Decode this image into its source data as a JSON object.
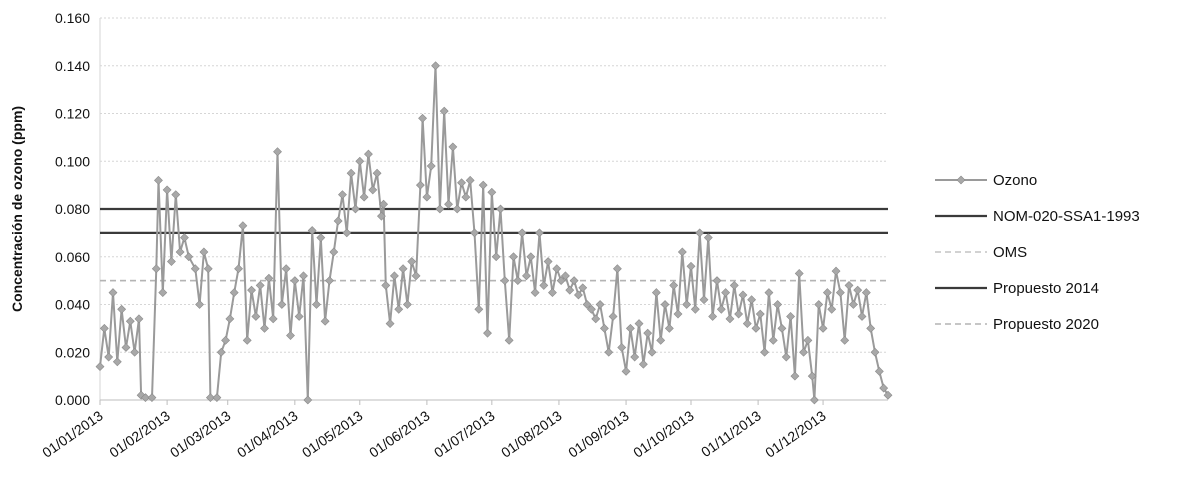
{
  "chart_data": {
    "type": "line",
    "title": "",
    "xlabel": "",
    "ylabel": "Concentración de ozono (ppm)",
    "ylim": [
      0,
      0.16
    ],
    "yticks": [
      "0.000",
      "0.020",
      "0.040",
      "0.060",
      "0.080",
      "0.100",
      "0.120",
      "0.140",
      "0.160"
    ],
    "xlim": [
      "2013-01-01",
      "2013-12-31"
    ],
    "xticks": [
      {
        "date": "2013-01-01",
        "label": "01/01/2013"
      },
      {
        "date": "2013-02-01",
        "label": "01/02/2013"
      },
      {
        "date": "2013-03-01",
        "label": "01/03/2013"
      },
      {
        "date": "2013-04-01",
        "label": "01/04/2013"
      },
      {
        "date": "2013-05-01",
        "label": "01/05/2013"
      },
      {
        "date": "2013-06-01",
        "label": "01/06/2013"
      },
      {
        "date": "2013-07-01",
        "label": "01/07/2013"
      },
      {
        "date": "2013-08-01",
        "label": "01/08/2013"
      },
      {
        "date": "2013-09-01",
        "label": "01/09/2013"
      },
      {
        "date": "2013-10-01",
        "label": "01/10/2013"
      },
      {
        "date": "2013-11-01",
        "label": "01/11/2013"
      },
      {
        "date": "2013-12-01",
        "label": "01/12/2013"
      }
    ],
    "grid": true,
    "legend_position": "right",
    "series": [
      {
        "name": "Ozono",
        "color": "#9a9a9a",
        "marker": "diamond",
        "points": [
          [
            "2013-01-01",
            0.014
          ],
          [
            "2013-01-03",
            0.03
          ],
          [
            "2013-01-05",
            0.018
          ],
          [
            "2013-01-07",
            0.045
          ],
          [
            "2013-01-09",
            0.016
          ],
          [
            "2013-01-11",
            0.038
          ],
          [
            "2013-01-13",
            0.022
          ],
          [
            "2013-01-15",
            0.033
          ],
          [
            "2013-01-17",
            0.02
          ],
          [
            "2013-01-19",
            0.034
          ],
          [
            "2013-01-20",
            0.002
          ],
          [
            "2013-01-22",
            0.001
          ],
          [
            "2013-01-25",
            0.001
          ],
          [
            "2013-01-27",
            0.055
          ],
          [
            "2013-01-28",
            0.092
          ],
          [
            "2013-01-30",
            0.045
          ],
          [
            "2013-02-01",
            0.088
          ],
          [
            "2013-02-03",
            0.058
          ],
          [
            "2013-02-05",
            0.086
          ],
          [
            "2013-02-07",
            0.062
          ],
          [
            "2013-02-09",
            0.068
          ],
          [
            "2013-02-11",
            0.06
          ],
          [
            "2013-02-14",
            0.055
          ],
          [
            "2013-02-16",
            0.04
          ],
          [
            "2013-02-18",
            0.062
          ],
          [
            "2013-02-20",
            0.055
          ],
          [
            "2013-02-21",
            0.001
          ],
          [
            "2013-02-24",
            0.001
          ],
          [
            "2013-02-26",
            0.02
          ],
          [
            "2013-02-28",
            0.025
          ],
          [
            "2013-03-02",
            0.034
          ],
          [
            "2013-03-04",
            0.045
          ],
          [
            "2013-03-06",
            0.055
          ],
          [
            "2013-03-08",
            0.073
          ],
          [
            "2013-03-10",
            0.025
          ],
          [
            "2013-03-12",
            0.046
          ],
          [
            "2013-03-14",
            0.035
          ],
          [
            "2013-03-16",
            0.048
          ],
          [
            "2013-03-18",
            0.03
          ],
          [
            "2013-03-20",
            0.051
          ],
          [
            "2013-03-22",
            0.034
          ],
          [
            "2013-03-24",
            0.104
          ],
          [
            "2013-03-26",
            0.04
          ],
          [
            "2013-03-28",
            0.055
          ],
          [
            "2013-03-30",
            0.027
          ],
          [
            "2013-04-01",
            0.05
          ],
          [
            "2013-04-03",
            0.035
          ],
          [
            "2013-04-05",
            0.052
          ],
          [
            "2013-04-07",
            0.0
          ],
          [
            "2013-04-09",
            0.071
          ],
          [
            "2013-04-11",
            0.04
          ],
          [
            "2013-04-13",
            0.068
          ],
          [
            "2013-04-15",
            0.033
          ],
          [
            "2013-04-17",
            0.05
          ],
          [
            "2013-04-19",
            0.062
          ],
          [
            "2013-04-21",
            0.075
          ],
          [
            "2013-04-23",
            0.086
          ],
          [
            "2013-04-25",
            0.07
          ],
          [
            "2013-04-27",
            0.095
          ],
          [
            "2013-04-29",
            0.08
          ],
          [
            "2013-05-01",
            0.1
          ],
          [
            "2013-05-03",
            0.085
          ],
          [
            "2013-05-05",
            0.103
          ],
          [
            "2013-05-07",
            0.088
          ],
          [
            "2013-05-09",
            0.095
          ],
          [
            "2013-05-11",
            0.077
          ],
          [
            "2013-05-12",
            0.082
          ],
          [
            "2013-05-13",
            0.048
          ],
          [
            "2013-05-15",
            0.032
          ],
          [
            "2013-05-17",
            0.052
          ],
          [
            "2013-05-19",
            0.038
          ],
          [
            "2013-05-21",
            0.055
          ],
          [
            "2013-05-23",
            0.04
          ],
          [
            "2013-05-25",
            0.058
          ],
          [
            "2013-05-27",
            0.052
          ],
          [
            "2013-05-29",
            0.09
          ],
          [
            "2013-05-30",
            0.118
          ],
          [
            "2013-06-01",
            0.085
          ],
          [
            "2013-06-03",
            0.098
          ],
          [
            "2013-06-05",
            0.14
          ],
          [
            "2013-06-07",
            0.08
          ],
          [
            "2013-06-09",
            0.121
          ],
          [
            "2013-06-11",
            0.082
          ],
          [
            "2013-06-13",
            0.106
          ],
          [
            "2013-06-15",
            0.08
          ],
          [
            "2013-06-17",
            0.091
          ],
          [
            "2013-06-19",
            0.085
          ],
          [
            "2013-06-21",
            0.092
          ],
          [
            "2013-06-23",
            0.07
          ],
          [
            "2013-06-25",
            0.038
          ],
          [
            "2013-06-27",
            0.09
          ],
          [
            "2013-06-29",
            0.028
          ],
          [
            "2013-07-01",
            0.087
          ],
          [
            "2013-07-03",
            0.06
          ],
          [
            "2013-07-05",
            0.08
          ],
          [
            "2013-07-07",
            0.05
          ],
          [
            "2013-07-09",
            0.025
          ],
          [
            "2013-07-11",
            0.06
          ],
          [
            "2013-07-13",
            0.05
          ],
          [
            "2013-07-15",
            0.07
          ],
          [
            "2013-07-17",
            0.052
          ],
          [
            "2013-07-19",
            0.06
          ],
          [
            "2013-07-21",
            0.045
          ],
          [
            "2013-07-23",
            0.07
          ],
          [
            "2013-07-25",
            0.048
          ],
          [
            "2013-07-27",
            0.058
          ],
          [
            "2013-07-29",
            0.045
          ],
          [
            "2013-07-31",
            0.055
          ],
          [
            "2013-08-02",
            0.05
          ],
          [
            "2013-08-04",
            0.052
          ],
          [
            "2013-08-06",
            0.046
          ],
          [
            "2013-08-08",
            0.05
          ],
          [
            "2013-08-10",
            0.044
          ],
          [
            "2013-08-12",
            0.047
          ],
          [
            "2013-08-14",
            0.04
          ],
          [
            "2013-08-16",
            0.038
          ],
          [
            "2013-08-18",
            0.034
          ],
          [
            "2013-08-20",
            0.04
          ],
          [
            "2013-08-22",
            0.03
          ],
          [
            "2013-08-24",
            0.02
          ],
          [
            "2013-08-26",
            0.035
          ],
          [
            "2013-08-28",
            0.055
          ],
          [
            "2013-08-30",
            0.022
          ],
          [
            "2013-09-01",
            0.012
          ],
          [
            "2013-09-03",
            0.03
          ],
          [
            "2013-09-05",
            0.018
          ],
          [
            "2013-09-07",
            0.032
          ],
          [
            "2013-09-09",
            0.015
          ],
          [
            "2013-09-11",
            0.028
          ],
          [
            "2013-09-13",
            0.02
          ],
          [
            "2013-09-15",
            0.045
          ],
          [
            "2013-09-17",
            0.025
          ],
          [
            "2013-09-19",
            0.04
          ],
          [
            "2013-09-21",
            0.03
          ],
          [
            "2013-09-23",
            0.048
          ],
          [
            "2013-09-25",
            0.036
          ],
          [
            "2013-09-27",
            0.062
          ],
          [
            "2013-09-29",
            0.04
          ],
          [
            "2013-10-01",
            0.056
          ],
          [
            "2013-10-03",
            0.038
          ],
          [
            "2013-10-05",
            0.07
          ],
          [
            "2013-10-07",
            0.042
          ],
          [
            "2013-10-09",
            0.068
          ],
          [
            "2013-10-11",
            0.035
          ],
          [
            "2013-10-13",
            0.05
          ],
          [
            "2013-10-15",
            0.038
          ],
          [
            "2013-10-17",
            0.045
          ],
          [
            "2013-10-19",
            0.034
          ],
          [
            "2013-10-21",
            0.048
          ],
          [
            "2013-10-23",
            0.036
          ],
          [
            "2013-10-25",
            0.044
          ],
          [
            "2013-10-27",
            0.032
          ],
          [
            "2013-10-29",
            0.042
          ],
          [
            "2013-10-31",
            0.03
          ],
          [
            "2013-11-02",
            0.036
          ],
          [
            "2013-11-04",
            0.02
          ],
          [
            "2013-11-06",
            0.045
          ],
          [
            "2013-11-08",
            0.025
          ],
          [
            "2013-11-10",
            0.04
          ],
          [
            "2013-11-12",
            0.03
          ],
          [
            "2013-11-14",
            0.018
          ],
          [
            "2013-11-16",
            0.035
          ],
          [
            "2013-11-18",
            0.01
          ],
          [
            "2013-11-20",
            0.053
          ],
          [
            "2013-11-22",
            0.02
          ],
          [
            "2013-11-24",
            0.025
          ],
          [
            "2013-11-26",
            0.01
          ],
          [
            "2013-11-27",
            0.0
          ],
          [
            "2013-11-29",
            0.04
          ],
          [
            "2013-12-01",
            0.03
          ],
          [
            "2013-12-03",
            0.045
          ],
          [
            "2013-12-05",
            0.038
          ],
          [
            "2013-12-07",
            0.054
          ],
          [
            "2013-12-09",
            0.045
          ],
          [
            "2013-12-11",
            0.025
          ],
          [
            "2013-12-13",
            0.048
          ],
          [
            "2013-12-15",
            0.04
          ],
          [
            "2013-12-17",
            0.046
          ],
          [
            "2013-12-19",
            0.035
          ],
          [
            "2013-12-21",
            0.045
          ],
          [
            "2013-12-23",
            0.03
          ],
          [
            "2013-12-25",
            0.02
          ],
          [
            "2013-12-27",
            0.012
          ],
          [
            "2013-12-29",
            0.005
          ],
          [
            "2013-12-31",
            0.002
          ]
        ]
      },
      {
        "name": "NOM-020-SSA1-1993",
        "color": "#3a3a3a",
        "value": 0.08
      },
      {
        "name": "OMS",
        "color": "#c4c4c4",
        "value": 0.05,
        "dashed": true
      },
      {
        "name": "Propuesto 2014",
        "color": "#3a3a3a",
        "value": 0.07
      },
      {
        "name": "Propuesto 2020",
        "color": "#b4b4b4",
        "value": 0.05,
        "dashed": true
      }
    ]
  }
}
